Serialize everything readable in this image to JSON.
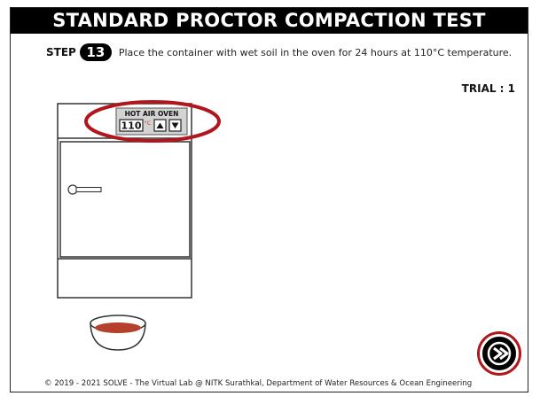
{
  "header": {
    "title": "STANDARD PROCTOR COMPACTION TEST"
  },
  "step": {
    "label": "STEP",
    "number": "13",
    "instruction": "Place the container with wet soil in the oven for 24 hours at 110°C temperature."
  },
  "trial": "TRIAL : 1",
  "oven": {
    "label": "HOT AIR OVEN",
    "temperature": "110",
    "unit": "°C",
    "up_icon": "triangle-up-icon",
    "down_icon": "triangle-down-icon"
  },
  "colors": {
    "highlight": "#b0161c",
    "soil": "#b5402b",
    "title_bar": "#000000"
  },
  "next_button": {
    "icon": "arrow-right-icon"
  },
  "footer": "© 2019 - 2021 SOLVE - The Virtual Lab @ NITK Surathkal, Department of Water Resources & Ocean Engineering"
}
